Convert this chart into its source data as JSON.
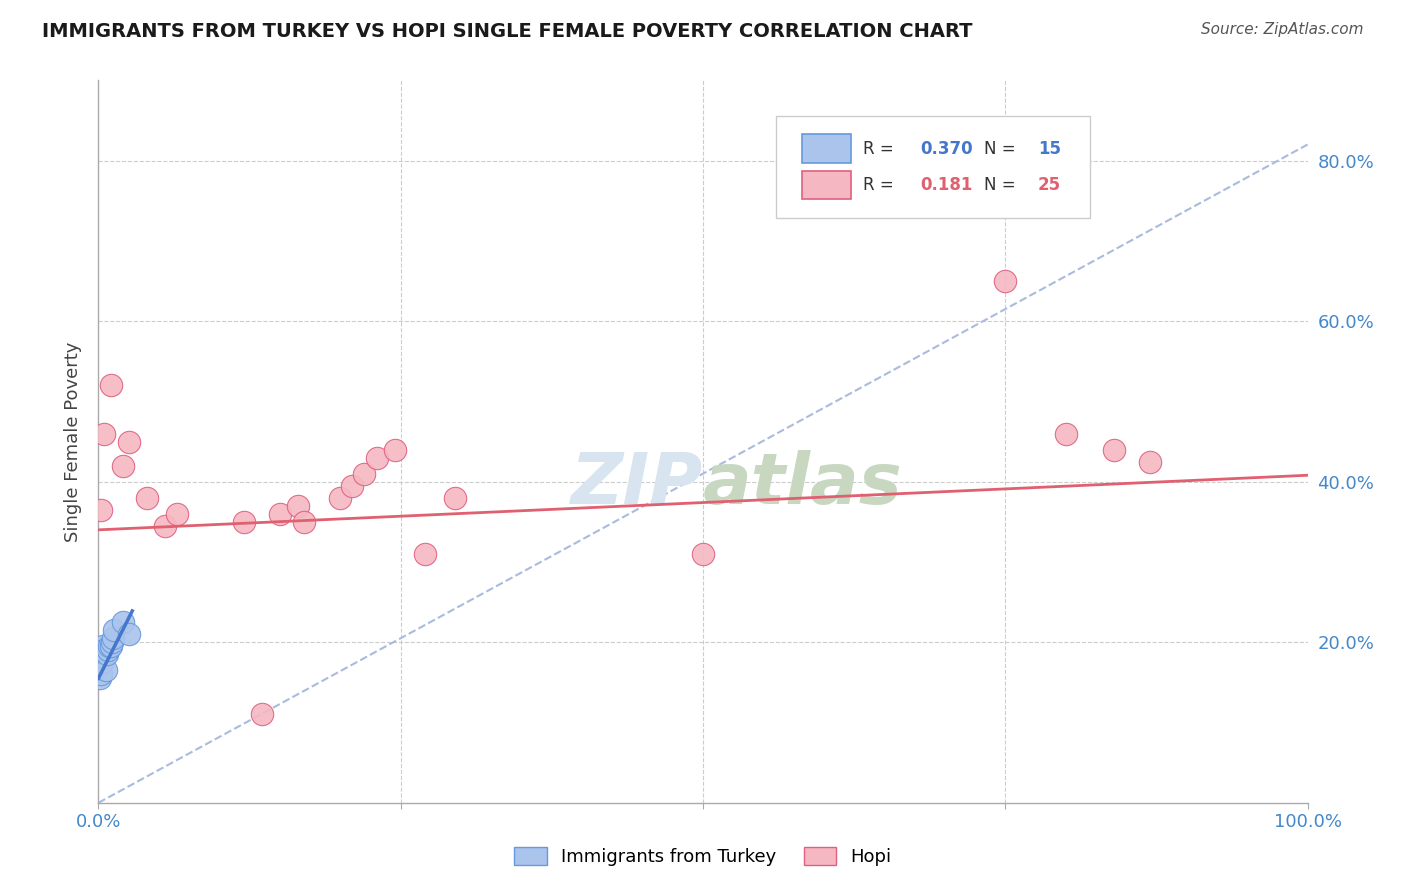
{
  "title": "IMMIGRANTS FROM TURKEY VS HOPI SINGLE FEMALE POVERTY CORRELATION CHART",
  "source": "Source: ZipAtlas.com",
  "ylabel": "Single Female Poverty",
  "xlim": [
    0,
    1.0
  ],
  "ylim": [
    0.0,
    0.9
  ],
  "blue_R": 0.37,
  "blue_N": 15,
  "pink_R": 0.181,
  "pink_N": 25,
  "blue_label": "Immigrants from Turkey",
  "pink_label": "Hopi",
  "blue_color": "#aac4ec",
  "pink_color": "#f5b8c2",
  "blue_edge_color": "#6699dd",
  "pink_edge_color": "#e06080",
  "blue_line_color": "#4477cc",
  "pink_line_color": "#e06070",
  "diag_line_color": "#aabbdd",
  "background_color": "#ffffff",
  "grid_color": "#cccccc",
  "blue_x": [
    0.001,
    0.002,
    0.003,
    0.004,
    0.005,
    0.006,
    0.007,
    0.008,
    0.009,
    0.01,
    0.011,
    0.012,
    0.013,
    0.02,
    0.025
  ],
  "blue_y": [
    0.155,
    0.16,
    0.175,
    0.195,
    0.19,
    0.165,
    0.185,
    0.19,
    0.195,
    0.195,
    0.2,
    0.205,
    0.215,
    0.225,
    0.21
  ],
  "pink_x": [
    0.002,
    0.005,
    0.01,
    0.02,
    0.025,
    0.04,
    0.055,
    0.065,
    0.12,
    0.15,
    0.165,
    0.17,
    0.2,
    0.21,
    0.22,
    0.23,
    0.245,
    0.27,
    0.295,
    0.5,
    0.75,
    0.8,
    0.84,
    0.87,
    0.135
  ],
  "pink_y": [
    0.365,
    0.46,
    0.52,
    0.42,
    0.45,
    0.38,
    0.345,
    0.36,
    0.35,
    0.36,
    0.37,
    0.35,
    0.38,
    0.395,
    0.41,
    0.43,
    0.44,
    0.31,
    0.38,
    0.31,
    0.65,
    0.46,
    0.44,
    0.425,
    0.11
  ],
  "blue_intercept": 0.155,
  "blue_slope": 3.0,
  "pink_intercept": 0.34,
  "pink_slope": 0.068,
  "diag_intercept": 0.0,
  "diag_slope": 0.82,
  "yticks": [
    0.2,
    0.4,
    0.6,
    0.8
  ],
  "ytick_labels": [
    "20.0%",
    "40.0%",
    "60.0%",
    "80.0%"
  ],
  "xticks": [
    0.0,
    0.25,
    0.5,
    0.75,
    1.0
  ],
  "xtick_labels": [
    "0.0%",
    "",
    "",
    "",
    "100.0%"
  ],
  "tick_color": "#4488cc",
  "title_fontsize": 14,
  "axis_fontsize": 13,
  "source_fontsize": 11
}
